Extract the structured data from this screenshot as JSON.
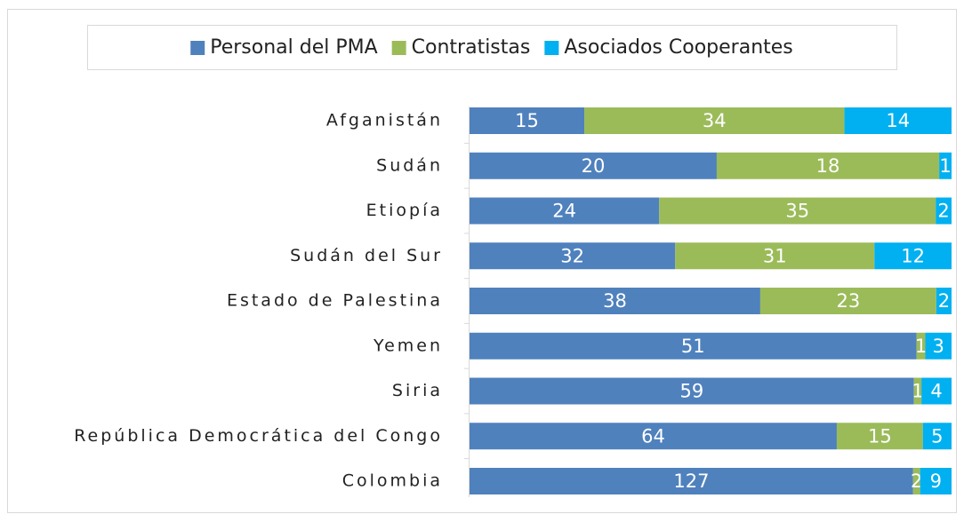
{
  "chart_data": {
    "type": "bar",
    "orientation": "horizontal",
    "stacked": "percent",
    "categories": [
      "Afganistán",
      "Sudán",
      "Etiopía",
      "Sudán del Sur",
      "Estado de Palestina",
      "Yemen",
      "Siria",
      "República Democrática del Congo",
      "Colombia"
    ],
    "series": [
      {
        "name": "Personal del PMA",
        "color": "#4f81bd",
        "values": [
          15,
          20,
          24,
          32,
          38,
          51,
          59,
          64,
          127
        ]
      },
      {
        "name": "Contratistas",
        "color": "#9bbb59",
        "values": [
          34,
          18,
          35,
          31,
          23,
          1,
          1,
          15,
          2
        ]
      },
      {
        "name": "Asociados Cooperantes",
        "color": "#00b0f0",
        "values": [
          14,
          1,
          2,
          12,
          2,
          3,
          4,
          5,
          9
        ]
      }
    ],
    "legend": "top"
  }
}
